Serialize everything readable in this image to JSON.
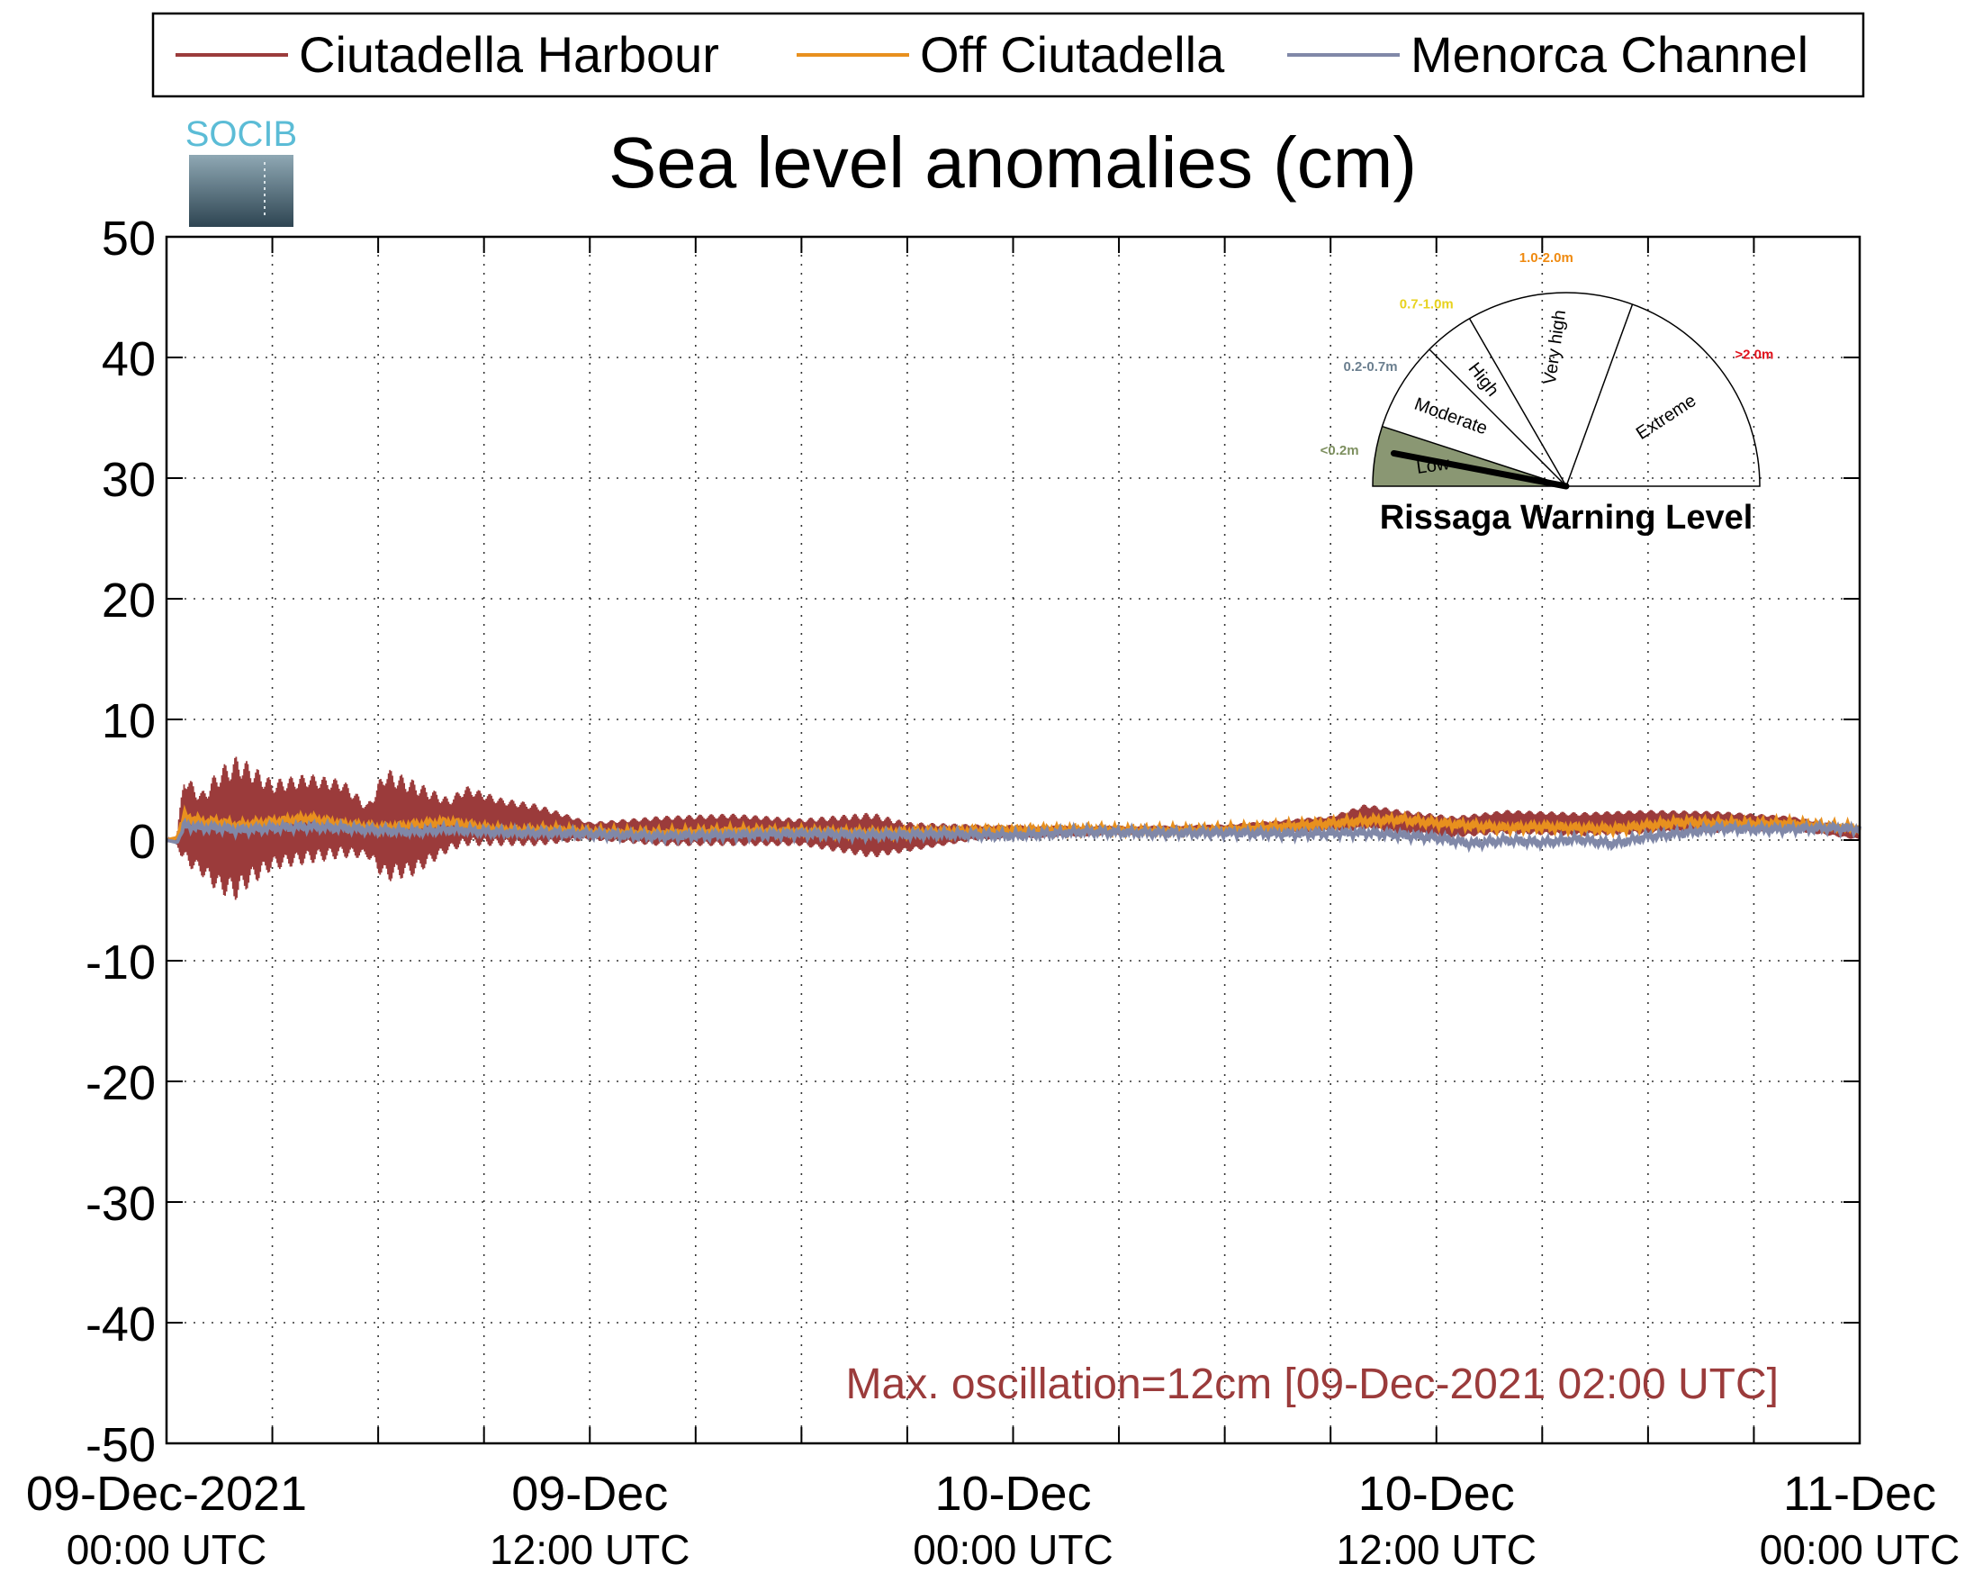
{
  "logo": {
    "text": "SOCIB"
  },
  "chart_data": {
    "type": "line",
    "title": "Sea level anomalies (cm)",
    "xlabel": "",
    "ylabel": "",
    "ylim": [
      -50,
      50
    ],
    "yticks": [
      -50,
      -40,
      -30,
      -20,
      -10,
      0,
      10,
      20,
      30,
      40,
      50
    ],
    "x_unit": "hours since 09-Dec-2021 00:00 UTC",
    "xlim": [
      0,
      48
    ],
    "xticks": [
      {
        "x": 0,
        "line1": "09-Dec-2021",
        "line2": "00:00 UTC"
      },
      {
        "x": 12,
        "line1": "09-Dec",
        "line2": "12:00 UTC"
      },
      {
        "x": 24,
        "line1": "10-Dec",
        "line2": "00:00 UTC"
      },
      {
        "x": 36,
        "line1": "10-Dec",
        "line2": "12:00 UTC"
      },
      {
        "x": 48,
        "line1": "11-Dec",
        "line2": "00:00 UTC"
      }
    ],
    "minor_xticks": [
      3,
      6,
      9,
      15,
      18,
      21,
      27,
      30,
      33,
      39,
      42,
      45
    ],
    "grid": true,
    "legend_position": "top",
    "series": [
      {
        "name": "Ciutadella Harbour",
        "color": "#9b3b3b",
        "envelope": {
          "x": [
            0,
            0.3,
            0.5,
            1.0,
            1.5,
            2.0,
            2.3,
            3.0,
            4.0,
            5.0,
            5.7,
            6.2,
            7.0,
            8.0,
            8.5,
            9.5,
            10.5,
            12.0,
            14.0,
            16.0,
            18.0,
            20.0,
            21.0,
            23.0,
            25.0,
            28.0,
            30.0,
            33.0,
            34.0,
            35.0,
            36.5,
            38.0,
            40.0,
            42.0,
            44.0,
            46.0,
            48.0
          ],
          "upper": [
            0,
            0.5,
            5.5,
            4.0,
            6.0,
            7.0,
            6.5,
            5.0,
            5.5,
            5.0,
            3.0,
            6.0,
            5.0,
            3.5,
            4.5,
            3.5,
            3.0,
            1.5,
            2.0,
            2.2,
            1.8,
            2.3,
            1.5,
            1.3,
            1.2,
            1.2,
            1.3,
            2.0,
            3.0,
            2.5,
            2.0,
            2.5,
            2.3,
            2.5,
            2.4,
            2.0,
            1.0
          ],
          "lower": [
            0,
            -0.5,
            -2.0,
            -3.0,
            -4.5,
            -5.0,
            -4.0,
            -2.5,
            -2.0,
            -1.5,
            -1.5,
            -3.5,
            -3.0,
            -1.0,
            -0.5,
            -0.5,
            -0.5,
            0.0,
            -0.5,
            -0.5,
            -0.5,
            -1.5,
            -1.0,
            0.0,
            0.2,
            0.5,
            0.5,
            0.7,
            0.8,
            0.5,
            0.2,
            0.5,
            0.3,
            0.5,
            0.6,
            0.8,
            0.0
          ]
        }
      },
      {
        "name": "Off Ciutadella",
        "color": "#e8901e",
        "x": [
          0,
          0.3,
          0.5,
          1.0,
          1.5,
          2.0,
          3.0,
          4.0,
          5.0,
          6.0,
          7.0,
          8.0,
          9.0,
          10.0,
          11.0,
          12.0,
          14.0,
          16.0,
          18.0,
          20.0,
          22.0,
          24.0,
          26.0,
          28.0,
          30.0,
          32.0,
          33.0,
          34.0,
          35.0,
          36.0,
          37.0,
          38.0,
          39.0,
          40.0,
          41.0,
          42.0,
          43.0,
          44.0,
          45.0,
          46.0,
          47.0,
          48.0
        ],
        "y": [
          0,
          0.2,
          2.0,
          1.5,
          1.5,
          1.2,
          1.5,
          1.8,
          1.3,
          1.0,
          1.2,
          1.5,
          1.0,
          0.8,
          0.9,
          0.7,
          0.6,
          0.8,
          0.7,
          0.6,
          0.7,
          0.8,
          0.9,
          0.8,
          0.9,
          1.2,
          1.4,
          1.6,
          1.7,
          1.4,
          1.2,
          1.0,
          1.1,
          1.0,
          0.9,
          1.2,
          1.5,
          1.4,
          1.4,
          1.4,
          1.2,
          1.0
        ]
      },
      {
        "name": "Menorca Channel",
        "color": "#8088a8",
        "x": [
          0,
          0.3,
          0.5,
          1.0,
          1.5,
          2.0,
          3.0,
          4.0,
          5.0,
          6.0,
          7.0,
          8.0,
          9.0,
          10.0,
          11.0,
          12.0,
          14.0,
          16.0,
          18.0,
          20.0,
          22.0,
          24.0,
          26.0,
          28.0,
          30.0,
          32.0,
          34.0,
          35.0,
          36.0,
          37.0,
          38.0,
          39.0,
          40.0,
          41.0,
          42.0,
          43.0,
          44.0,
          45.0,
          46.0,
          47.0,
          48.0
        ],
        "y": [
          0,
          -0.2,
          1.2,
          1.0,
          1.0,
          0.8,
          1.0,
          1.1,
          1.0,
          0.8,
          0.7,
          0.9,
          0.7,
          0.6,
          0.6,
          0.5,
          0.3,
          0.4,
          0.5,
          0.4,
          0.5,
          0.4,
          0.7,
          0.6,
          0.6,
          0.5,
          0.6,
          0.4,
          0.2,
          -0.3,
          0.0,
          -0.2,
          0.1,
          -0.3,
          0.3,
          0.6,
          1.0,
          0.9,
          0.9,
          1.0,
          0.9
        ]
      }
    ],
    "annotation": "Max. oscillation=12cm [09-Dec-2021 02:00 UTC]",
    "annotation_color": "#9b3b3b"
  },
  "gauge": {
    "title": "Rissaga Warning Level",
    "needle_value_m": 0.12,
    "active_level": "Low",
    "active_color": "#8a9773",
    "levels": [
      {
        "name": "Low",
        "range": "<0.2m",
        "range_color": "#7d8f5f"
      },
      {
        "name": "Moderate",
        "range": "0.2-0.7m",
        "range_color": "#6b7f8f"
      },
      {
        "name": "High",
        "range": "0.7-1.0m",
        "range_color": "#e8d21e"
      },
      {
        "name": "Very high",
        "range": "1.0-2.0m",
        "range_color": "#ef8a10"
      },
      {
        "name": "Extreme",
        "range": ">2.0m",
        "range_color": "#e0101a"
      }
    ]
  }
}
